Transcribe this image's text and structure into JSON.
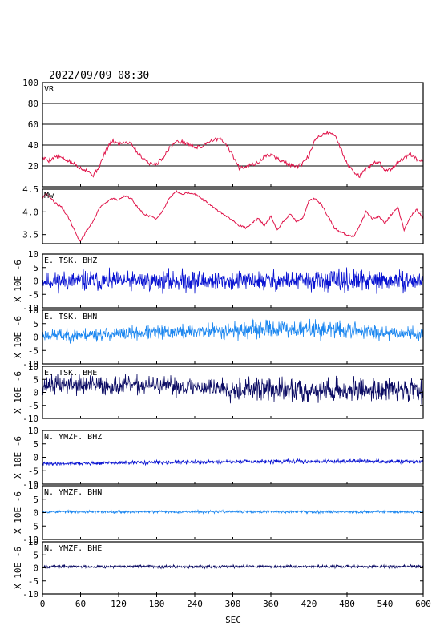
{
  "title": "2022/09/09 08:30",
  "x_axis": {
    "label": "SEC",
    "min": 0,
    "max": 600,
    "ticks": [
      0,
      60,
      120,
      180,
      240,
      300,
      360,
      420,
      480,
      540,
      600
    ]
  },
  "y_unit_label": "X 10E -6",
  "colors": {
    "frame": "#000000",
    "vr_line": "#e0144a",
    "mw_line": "#e0144a",
    "bhz": "#0a14d2",
    "bhn": "#1e88f0",
    "bhe": "#0c0c64"
  },
  "chart_data": [
    {
      "type": "line",
      "name": "VR",
      "label": "VR",
      "ylim": [
        0,
        100
      ],
      "yticks": [
        20,
        40,
        60,
        80,
        100
      ],
      "grid": true,
      "color": "#e0144a",
      "x": [
        0,
        5,
        10,
        20,
        30,
        40,
        50,
        55,
        60,
        70,
        80,
        90,
        100,
        110,
        120,
        130,
        140,
        150,
        160,
        170,
        180,
        190,
        200,
        210,
        220,
        230,
        240,
        250,
        260,
        270,
        280,
        290,
        300,
        310,
        320,
        330,
        340,
        350,
        360,
        370,
        380,
        390,
        400,
        410,
        420,
        430,
        440,
        450,
        460,
        470,
        480,
        490,
        500,
        510,
        520,
        530,
        540,
        550,
        560,
        570,
        580,
        590,
        600
      ],
      "values": [
        27,
        27,
        25,
        29,
        28,
        25,
        22,
        20,
        18,
        16,
        11,
        20,
        35,
        44,
        41,
        43,
        42,
        32,
        27,
        22,
        22,
        28,
        37,
        43,
        43,
        41,
        38,
        38,
        43,
        45,
        46,
        40,
        30,
        18,
        20,
        21,
        23,
        29,
        31,
        27,
        24,
        21,
        19,
        22,
        30,
        45,
        50,
        52,
        50,
        37,
        22,
        15,
        10,
        17,
        22,
        24,
        16,
        17,
        23,
        28,
        31,
        26,
        24
      ]
    },
    {
      "type": "line",
      "name": "Mw",
      "label": "Mw",
      "ylim": [
        3.3,
        4.5
      ],
      "yticks": [
        3.5,
        4.0,
        4.5
      ],
      "grid": false,
      "color": "#e0144a",
      "x": [
        0,
        5,
        10,
        20,
        30,
        40,
        50,
        55,
        60,
        70,
        80,
        90,
        100,
        110,
        120,
        130,
        140,
        150,
        160,
        170,
        180,
        190,
        200,
        210,
        220,
        230,
        240,
        250,
        260,
        270,
        280,
        290,
        300,
        310,
        320,
        330,
        340,
        350,
        360,
        370,
        380,
        390,
        400,
        410,
        420,
        430,
        440,
        450,
        460,
        470,
        480,
        490,
        500,
        510,
        520,
        530,
        540,
        550,
        560,
        570,
        580,
        590,
        600
      ],
      "values": [
        4.3,
        4.4,
        4.35,
        4.2,
        4.1,
        3.9,
        3.6,
        3.45,
        3.35,
        3.6,
        3.8,
        4.1,
        4.2,
        4.3,
        4.25,
        4.35,
        4.3,
        4.1,
        3.95,
        3.9,
        3.85,
        4.05,
        4.3,
        4.45,
        4.4,
        4.42,
        4.4,
        4.3,
        4.2,
        4.1,
        4.0,
        3.9,
        3.8,
        3.7,
        3.65,
        3.75,
        3.85,
        3.7,
        3.9,
        3.6,
        3.8,
        3.95,
        3.8,
        3.85,
        4.25,
        4.3,
        4.15,
        3.9,
        3.65,
        3.55,
        3.5,
        3.45,
        3.7,
        4.0,
        3.85,
        3.9,
        3.75,
        3.95,
        4.1,
        3.6,
        3.9,
        4.05,
        3.85
      ]
    },
    {
      "type": "line",
      "name": "E.TSK.BHZ",
      "label": "E. TSK. BHZ",
      "ylim": [
        -10,
        10
      ],
      "yticks": [
        -10,
        -5,
        0,
        5,
        10
      ],
      "grid": false,
      "color": "#0a14d2",
      "noise": {
        "mean": 0,
        "amplitude": [
          2.2,
          2.8,
          2.4,
          2.6,
          3.0,
          2.4,
          2.7,
          2.5,
          2.9,
          2.6,
          2.3
        ],
        "seed": 11
      }
    },
    {
      "type": "line",
      "name": "E.TSK.BHN",
      "label": "E. TSK. BHN",
      "ylim": [
        -10,
        10
      ],
      "yticks": [
        -10,
        -5,
        0,
        5,
        10
      ],
      "grid": false,
      "color": "#1e88f0",
      "noise": {
        "mean": [
          0.6,
          0.8,
          1.2,
          1.6,
          2.1,
          2.5,
          2.9,
          3.0,
          2.6,
          1.8,
          1.2
        ],
        "amplitude": [
          1.6,
          1.8,
          1.7,
          1.9,
          2.0,
          2.2,
          2.3,
          2.4,
          2.2,
          2.0,
          1.6
        ],
        "seed": 23
      }
    },
    {
      "type": "line",
      "name": "E.TSK.BHE",
      "label": "E. TSK. BHE",
      "ylim": [
        -10,
        10
      ],
      "yticks": [
        -10,
        -5,
        0,
        5,
        10
      ],
      "grid": false,
      "color": "#0c0c64",
      "noise": {
        "mean": [
          3.0,
          2.8,
          2.6,
          2.6,
          2.2,
          1.4,
          1.0,
          0.9,
          0.8,
          1.0,
          1.3
        ],
        "amplitude": [
          2.6,
          2.8,
          2.5,
          2.4,
          2.6,
          3.0,
          3.2,
          3.4,
          3.0,
          3.1,
          3.3
        ],
        "seed": 37
      }
    },
    {
      "type": "line",
      "name": "N.YMZF.BHZ",
      "label": "N. YMZF. BHZ",
      "ylim": [
        -10,
        10
      ],
      "yticks": [
        -10,
        -5,
        0,
        5,
        10
      ],
      "grid": false,
      "color": "#0a14d2",
      "noise": {
        "mean": [
          -2.4,
          -2.3,
          -2.1,
          -1.9,
          -1.8,
          -1.7,
          -1.6,
          -1.5,
          -1.5,
          -1.6,
          -1.7
        ],
        "amplitude": [
          0.4,
          0.45,
          0.45,
          0.5,
          0.5,
          0.5,
          0.55,
          0.55,
          0.55,
          0.5,
          0.6
        ],
        "seed": 41
      }
    },
    {
      "type": "line",
      "name": "N.YMZF.BHN",
      "label": "N. YMZF. BHN",
      "ylim": [
        -10,
        10
      ],
      "yticks": [
        -10,
        -5,
        0,
        5,
        10
      ],
      "grid": false,
      "color": "#1e88f0",
      "noise": {
        "mean": 0.3,
        "amplitude": 0.35,
        "seed": 53
      }
    },
    {
      "type": "line",
      "name": "N.YMZF.BHE",
      "label": "N. YMZF. BHE",
      "ylim": [
        -10,
        10
      ],
      "yticks": [
        -10,
        -5,
        0,
        5,
        10
      ],
      "grid": false,
      "color": "#0c0c64",
      "noise": {
        "mean": 0.5,
        "amplitude": 0.4,
        "seed": 67
      }
    }
  ]
}
